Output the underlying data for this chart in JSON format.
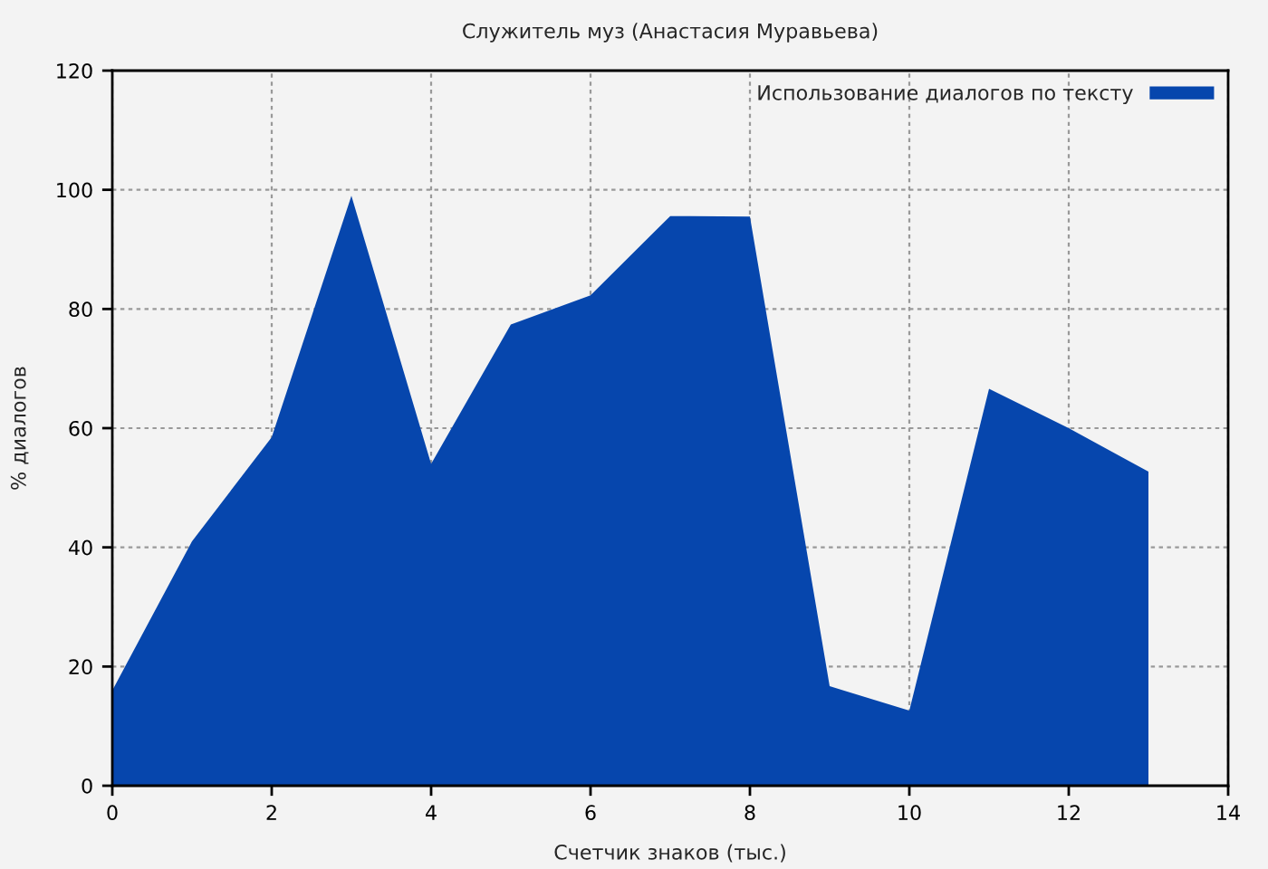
{
  "chart_data": {
    "type": "area",
    "title": "Служитель муз (Анастасия Муравьева)",
    "xlabel": "Счетчик знаков (тыс.)",
    "ylabel": "% диалогов",
    "x": [
      0,
      1,
      2,
      3,
      4,
      5,
      6,
      7,
      8,
      9,
      10,
      11,
      12,
      13
    ],
    "series": [
      {
        "name": "Использование диалогов по тексту",
        "color": "#0646ad",
        "values": [
          16,
          41,
          58.5,
          99,
          54,
          77.4,
          82.3,
          95.6,
          95.5,
          16.7,
          12.6,
          66.6,
          60,
          52.7
        ]
      }
    ],
    "xlim": [
      0,
      14
    ],
    "xticks": [
      0,
      2,
      4,
      6,
      8,
      10,
      12,
      14
    ],
    "ylim": [
      0,
      120
    ],
    "yticks": [
      0,
      20,
      40,
      60,
      80,
      100,
      120
    ],
    "grid": true,
    "legend": "top right"
  }
}
